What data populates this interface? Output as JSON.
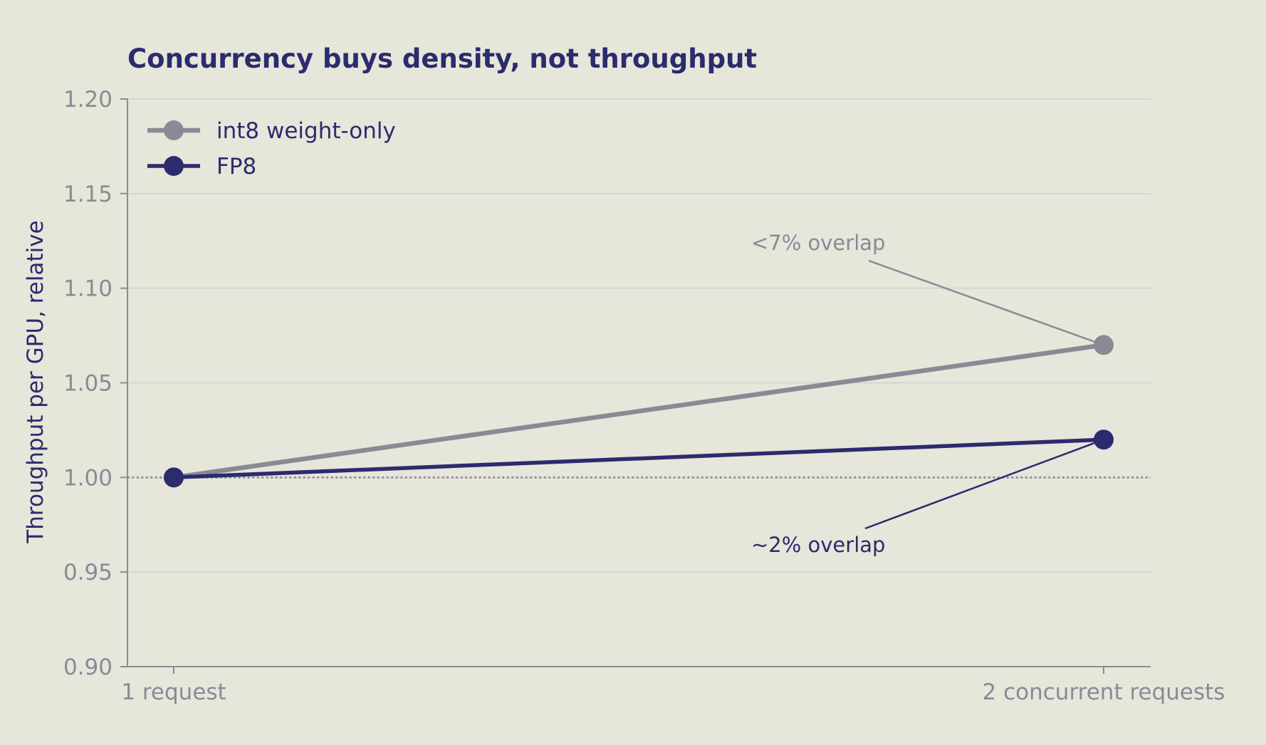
{
  "chart_data": {
    "type": "line",
    "title": "Concurrency buys density, not throughput",
    "xlabel": "",
    "ylabel": "Throughput per GPU, relative",
    "categories": [
      "1 request",
      "2 concurrent requests"
    ],
    "ylim": [
      0.9,
      1.2
    ],
    "yticks": [
      0.9,
      0.95,
      1.0,
      1.05,
      1.1,
      1.15,
      1.2
    ],
    "ytick_labels": [
      "0.90",
      "0.95",
      "1.00",
      "1.05",
      "1.10",
      "1.15",
      "1.20"
    ],
    "grid": true,
    "reference_line": {
      "y": 1.0,
      "style": "dotted"
    },
    "legend_position": "top-left",
    "series": [
      {
        "name": "int8 weight-only",
        "values": [
          1.0,
          1.07
        ],
        "color": "#8a8a96"
      },
      {
        "name": "FP8",
        "values": [
          1.0,
          1.02
        ],
        "color": "#2b2b6e"
      }
    ],
    "annotations": [
      {
        "text": "<7% overlap",
        "series": 0,
        "point": 1,
        "color": "#8a8a96"
      },
      {
        "text": "~2% overlap",
        "series": 1,
        "point": 1,
        "color": "#2b2b6e"
      }
    ],
    "colors": {
      "background": "#e6e6da",
      "title": "#2b2b6e",
      "axis_label": "#2b2b6e",
      "tick": "#8a8a96",
      "grid": "#d0d0d0"
    }
  }
}
